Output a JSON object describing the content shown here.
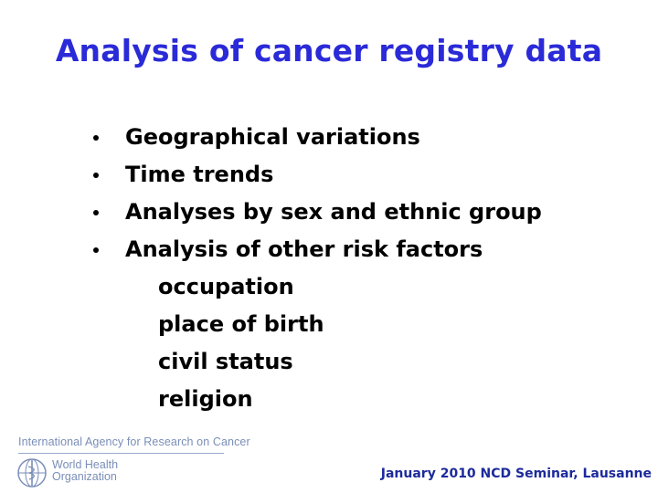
{
  "slide": {
    "title": "Analysis of cancer registry data",
    "bullets": [
      "Geographical variations",
      "Time trends",
      "Analyses by sex and ethnic group",
      "Analysis of other risk factors"
    ],
    "sub_items": [
      "occupation",
      "place of birth",
      "civil status",
      "religion"
    ]
  },
  "branding": {
    "agency_name": "International Agency for Research on Cancer",
    "who_line1": "World Health",
    "who_line2": "Organization",
    "logo_icon": "who-emblem-icon"
  },
  "footer": {
    "text": "January 2010 NCD Seminar, Lausanne"
  },
  "colors": {
    "title": "#2a2ad8",
    "footer": "#1c2a9c",
    "branding": "#7a8eb8"
  }
}
